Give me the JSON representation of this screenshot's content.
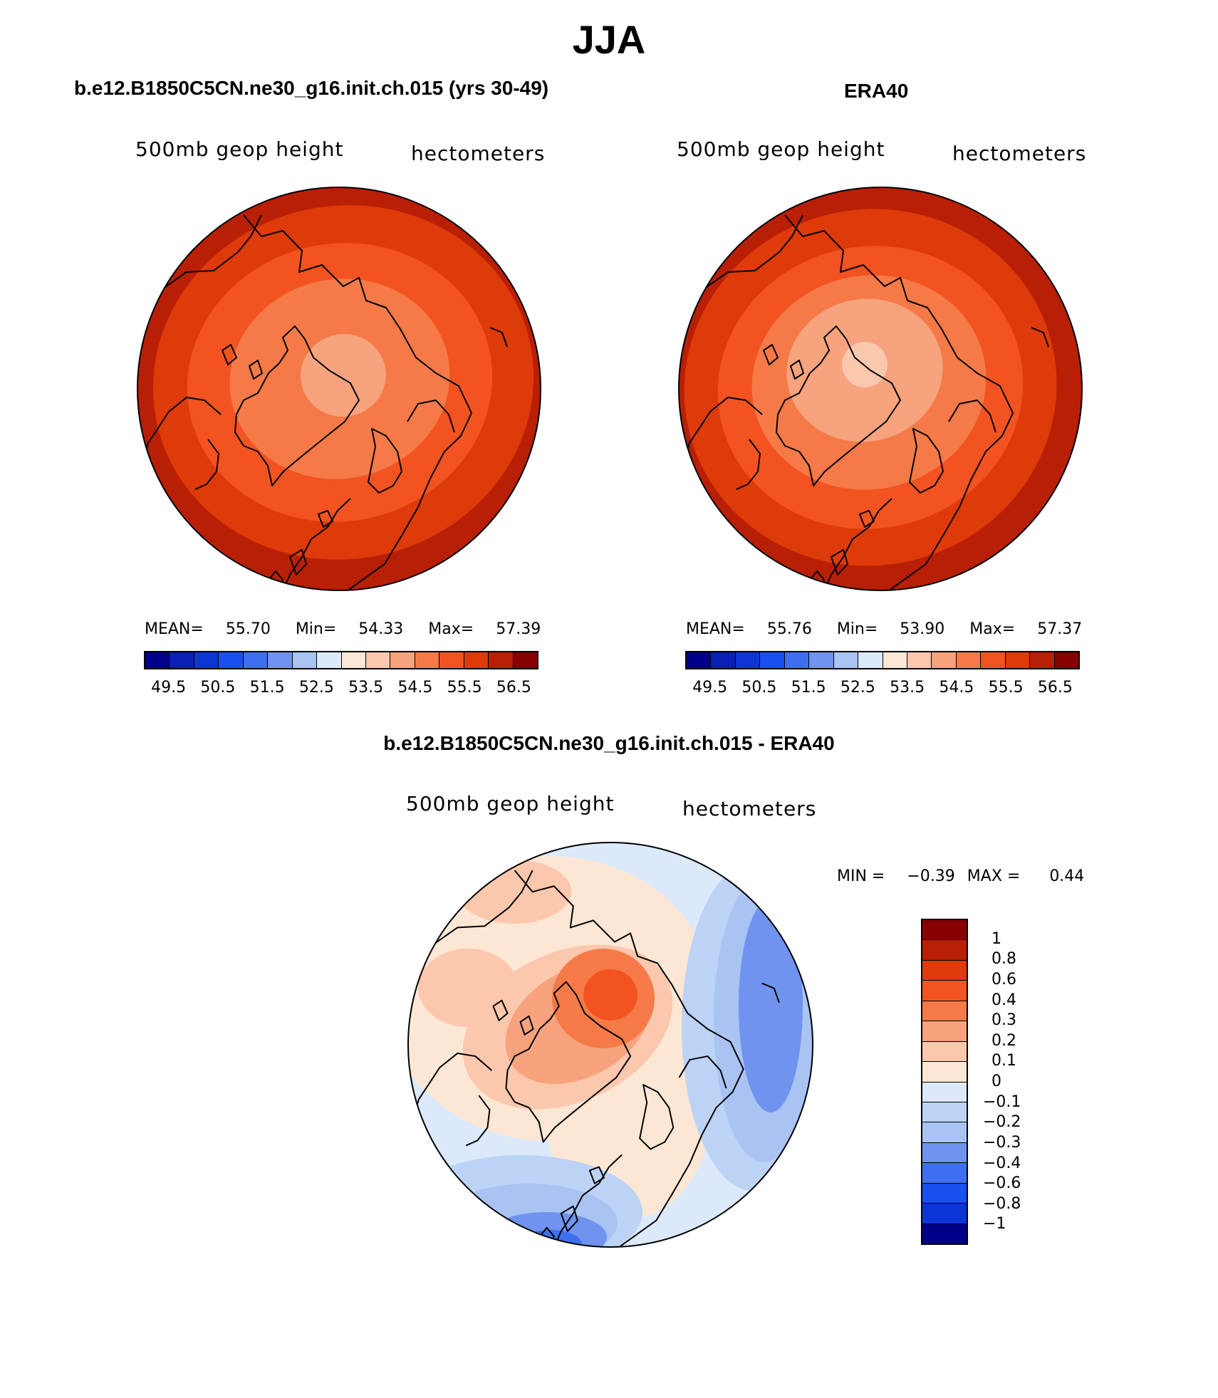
{
  "figure": {
    "title": "JJA"
  },
  "panels": [
    {
      "title": "b.e12.B1850C5CN.ne30_g16.init.ch.015 (yrs 30-49)",
      "left_label": "500mb geop height",
      "right_label": "hectometers",
      "stats": {
        "mean_label": "MEAN=",
        "mean": "55.70",
        "min_label": "Min=",
        "min": "54.33",
        "max_label": "Max=",
        "max": "57.39"
      }
    },
    {
      "title": "ERA40",
      "left_label": "500mb geop height",
      "right_label": "hectometers",
      "stats": {
        "mean_label": "MEAN=",
        "mean": "55.76",
        "min_label": "Min=",
        "min": "53.90",
        "max_label": "Max=",
        "max": "57.37"
      }
    },
    {
      "title": "b.e12.B1850C5CN.ne30_g16.init.ch.015 - ERA40",
      "left_label": "500mb geop height",
      "right_label": "hectometers",
      "stats": {
        "min_label": "MIN =",
        "min": "−0.39",
        "max_label": "MAX =",
        "max": "0.44"
      }
    }
  ],
  "colorbars": {
    "abs_colors": [
      "#00008b",
      "#0a1fb4",
      "#0d35d6",
      "#1a4ff0",
      "#3e6ff0",
      "#6f93ee",
      "#a9c3f3",
      "#dbe9fa",
      "#fde7d4",
      "#fbc7ad",
      "#f6a37e",
      "#f57a48",
      "#f25320",
      "#de3a0a",
      "#b91f05",
      "#870000"
    ],
    "abs_tick_labels": [
      "49.5",
      "50.5",
      "51.5",
      "52.5",
      "53.5",
      "54.5",
      "55.5",
      "56.5"
    ],
    "diff_colors": [
      "#870000",
      "#b91f05",
      "#de3a0a",
      "#f25320",
      "#f57a48",
      "#f6a37e",
      "#fbc7ad",
      "#fde7d4",
      "#dbe9fa",
      "#bcd3f6",
      "#a9c3f3",
      "#6f93ee",
      "#3e6ff0",
      "#1a4ff0",
      "#0d35d6",
      "#00008b"
    ],
    "diff_tick_labels": [
      "1",
      "0.8",
      "0.6",
      "0.4",
      "0.3",
      "0.2",
      "0.1",
      "0",
      "−0.1",
      "−0.2",
      "−0.3",
      "−0.4",
      "−0.6",
      "−0.8",
      "−1"
    ]
  },
  "map_fields": {
    "model": {
      "levels": [
        57.0,
        56.5,
        56.0,
        55.5,
        55.0,
        54.5
      ],
      "colors": [
        "#870000",
        "#b91f05",
        "#de3a0a",
        "#f25320",
        "#f57a48",
        "#f6a37e"
      ]
    },
    "era40": {
      "levels": [
        57.0,
        56.5,
        56.0,
        55.5,
        55.0,
        54.5,
        54.0
      ],
      "colors": [
        "#870000",
        "#b91f05",
        "#de3a0a",
        "#f25320",
        "#f57a48",
        "#f6a37e",
        "#fbc7ad"
      ]
    },
    "diff": {
      "colors": {
        "pos4": "#f25320",
        "pos3": "#f57a48",
        "pos2": "#f6a37e",
        "pos1": "#fbc7ad",
        "pos0": "#fde7d4",
        "neg0": "#dbe9fa",
        "neg1": "#bcd3f6",
        "neg2": "#a9c3f3",
        "neg3": "#6f93ee",
        "neg4": "#3e6ff0"
      }
    }
  }
}
